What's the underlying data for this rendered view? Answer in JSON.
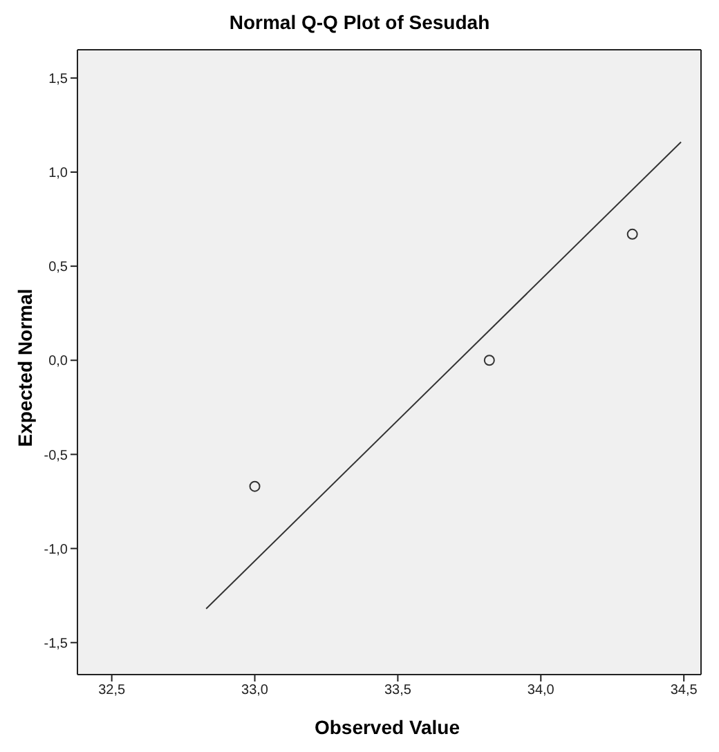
{
  "chart_data": {
    "type": "scatter",
    "title": "Normal Q-Q Plot of Sesudah",
    "xlabel": "Observed Value",
    "ylabel": "Expected Normal",
    "x": [
      33.0,
      33.82,
      34.32
    ],
    "series": [
      {
        "color": "#333333",
        "marker": "circle",
        "values": [
          -0.67,
          0.0,
          0.67
        ]
      },
      {
        "type": "line",
        "color": "#333333",
        "marker": "none",
        "x": [
          32.83,
          34.49
        ],
        "values": [
          -1.32,
          1.16
        ]
      }
    ],
    "xlim": [
      32.38,
      34.56
    ],
    "ylim": [
      -1.67,
      1.65
    ],
    "xticks": [
      {
        "value": 32.5,
        "label": "32,5"
      },
      {
        "value": 33.0,
        "label": "33,0"
      },
      {
        "value": 33.5,
        "label": "33,5"
      },
      {
        "value": 34.0,
        "label": "34,0"
      },
      {
        "value": 34.5,
        "label": "34,5"
      }
    ],
    "yticks": [
      {
        "value": -1.5,
        "label": "-1,5"
      },
      {
        "value": -1.0,
        "label": "-1,0"
      },
      {
        "value": -0.5,
        "label": "-0,5"
      },
      {
        "value": 0.0,
        "label": "0,0"
      },
      {
        "value": 0.5,
        "label": "0,5"
      },
      {
        "value": 1.0,
        "label": "1,0"
      },
      {
        "value": 1.5,
        "label": "1,5"
      }
    ],
    "grid": false
  }
}
